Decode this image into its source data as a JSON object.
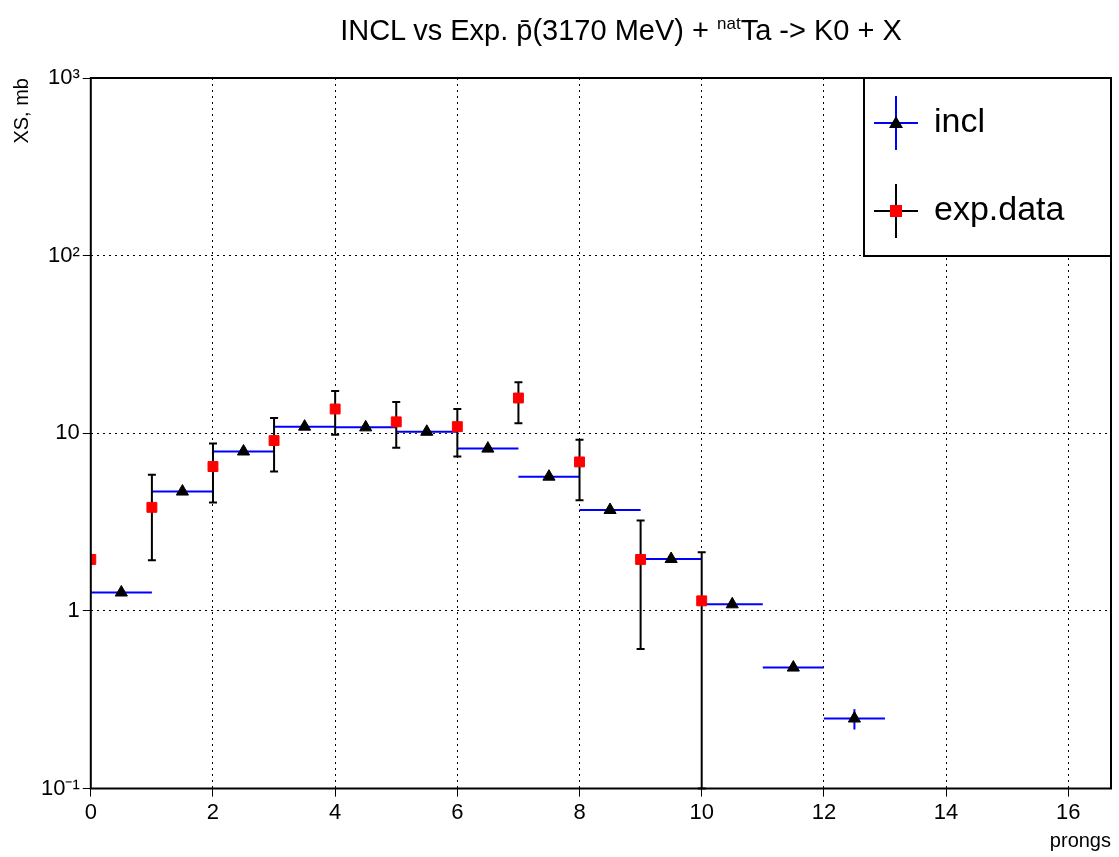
{
  "chart_data": {
    "type": "scatter",
    "title": "INCL vs Exp. p̄(3170 MeV) + $^{nat}$Ta -> K0 + X",
    "xlabel": "prongs",
    "ylabel": "XS, mb",
    "log": "y",
    "grid": true,
    "legend": "top right",
    "xlim": [
      0,
      16.7
    ],
    "xticks": [
      0,
      2,
      4,
      6,
      8,
      10,
      12,
      14,
      16
    ],
    "ylim": [
      0.1,
      1000
    ],
    "yticks": [
      {
        "value": 0.1,
        "label": "10⁻¹"
      },
      1,
      10,
      {
        "value": 100,
        "label": "10²"
      },
      {
        "value": 1000,
        "label": "10³"
      }
    ],
    "series": [
      {
        "name": "incl",
        "marker": "triangle",
        "color": "#000000",
        "x": [
          0.5,
          1.5,
          2.5,
          3.5,
          4.5,
          5.5,
          6.5,
          7.5,
          8.5,
          9.5,
          10.5,
          11.5,
          12.5
        ],
        "values": [
          1.27,
          4.7,
          7.9,
          10.9,
          10.8,
          10.2,
          8.2,
          5.7,
          3.7,
          1.96,
          1.09,
          0.48,
          0.248
        ],
        "xerrors": [
          0.5,
          0.5,
          0.5,
          0.5,
          0.5,
          0.5,
          0.5,
          0.5,
          0.5,
          0.5,
          0.5,
          0.5,
          0.5
        ],
        "errors": [
          null,
          null,
          null,
          null,
          null,
          null,
          null,
          null,
          null,
          null,
          null,
          null,
          [
            0.215,
            0.28
          ]
        ]
      },
      {
        "name": "exp.data",
        "marker": "square",
        "color": "#ff0000",
        "x": [
          0,
          1,
          2,
          3,
          4,
          5,
          6,
          7,
          8,
          9,
          10
        ],
        "values": [
          1.95,
          3.83,
          6.5,
          9.1,
          13.7,
          11.6,
          10.9,
          15.8,
          6.9,
          1.95,
          1.14
        ],
        "errors": [
          null,
          [
            1.93,
            5.85
          ],
          [
            4.08,
            8.75
          ],
          [
            6.1,
            12.2
          ],
          [
            9.8,
            17.3
          ],
          [
            8.3,
            15.0
          ],
          [
            7.4,
            13.7
          ],
          [
            11.4,
            19.4
          ],
          [
            4.2,
            9.2
          ],
          [
            0.61,
            3.23
          ],
          [
            0.1,
            2.14
          ]
        ]
      }
    ]
  }
}
